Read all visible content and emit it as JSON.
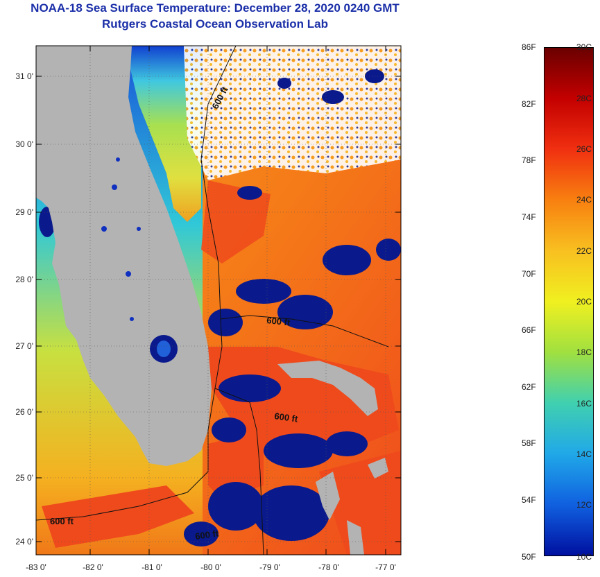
{
  "title": {
    "line1": "NOAA-18 Sea Surface Temperature:  December 28, 2020 0240 GMT",
    "line2": "Rutgers Coastal Ocean Observation Lab"
  },
  "map": {
    "lat_ticks": [
      "31 0'",
      "30 0'",
      "29 0'",
      "28 0'",
      "27 0'",
      "26 0'",
      "25 0'",
      "24 0'"
    ],
    "lon_ticks": [
      "-83 0'",
      "-82 0'",
      "-81 0'",
      "-80 0'",
      "-79 0'",
      "-78 0'",
      "-77 0'"
    ],
    "isobath_labels": [
      "600 ft",
      "600 ft",
      "600 ft",
      "600 ft",
      "600 ft"
    ],
    "colors": {
      "land": "#b3b3b3",
      "cloud_mask": "#0a1a8c",
      "warm": "#ef4a1c",
      "cool": "#2ad0c8"
    }
  },
  "colorbar": {
    "fahrenheit": [
      "86F",
      "82F",
      "78F",
      "74F",
      "70F",
      "66F",
      "62F",
      "58F",
      "54F",
      "50F"
    ],
    "celsius": [
      "30C",
      "28C",
      "26C",
      "24C",
      "22C",
      "20C",
      "18C",
      "16C",
      "14C",
      "12C",
      "10C"
    ],
    "gradient": [
      "#6a0000",
      "#c40000",
      "#f03010",
      "#f88010",
      "#f8c020",
      "#f0f020",
      "#a0e040",
      "#40d0b0",
      "#20a8e8",
      "#1060e0",
      "#0010a0"
    ]
  }
}
